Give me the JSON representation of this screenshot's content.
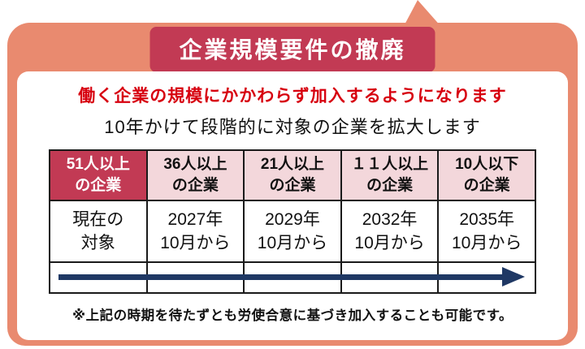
{
  "title": "企業規模要件の撤廃",
  "lead": {
    "red": "働く企業の規模にかかわらず加入するようになります",
    "black": "10年かけて段階的に対象の企業を拡大します"
  },
  "table": {
    "columns": [
      {
        "header_line1": "51人以上",
        "header_line2": "の企業",
        "value_line1": "現在の",
        "value_line2": "対象",
        "highlight": true
      },
      {
        "header_line1": "36人以上",
        "header_line2": "の企業",
        "value_line1": "2027年",
        "value_line2": "10月から",
        "highlight": false
      },
      {
        "header_line1": "21人以上",
        "header_line2": "の企業",
        "value_line1": "2029年",
        "value_line2": "10月から",
        "highlight": false
      },
      {
        "header_line1": "１１人以上",
        "header_line2": "の企業",
        "value_line1": "2032年",
        "value_line2": "10月から",
        "highlight": false
      },
      {
        "header_line1": "10人以下",
        "header_line2": "の企業",
        "value_line1": "2035年",
        "value_line2": "10月から",
        "highlight": false
      }
    ]
  },
  "footnote": "※上記の時期を待たずとも労使合意に基づき加入することも可能です。",
  "colors": {
    "frame": "#E98A6F",
    "title_bg": "#C23A54",
    "red_text": "#D7000F",
    "header_pink": "#F3D7DB",
    "header_highlight": "#C23A54",
    "arrow": "#1F3864",
    "table_border": "#1a1a1a"
  }
}
